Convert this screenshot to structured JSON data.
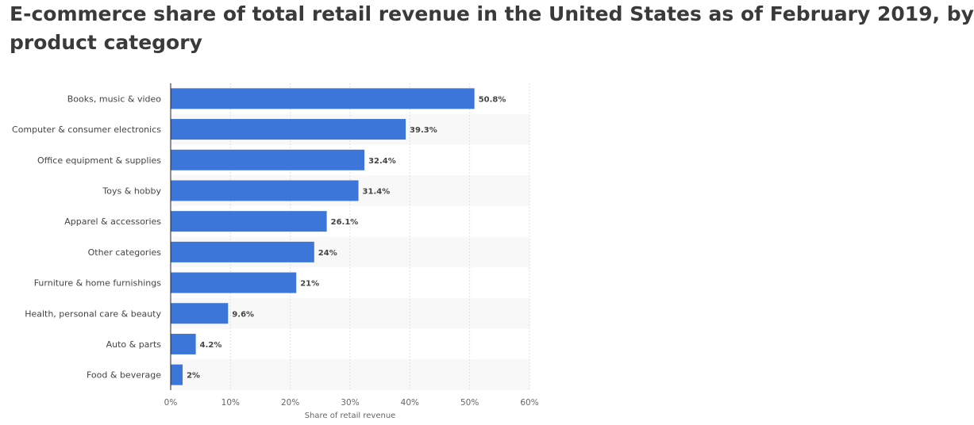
{
  "title_lines": [
    "E-commerce share of total retail revenue in the United States as of February 2019, by",
    "product category"
  ],
  "colors": {
    "bar": "#3b76d8",
    "title": "#3a3a3a",
    "label": "#444444",
    "axis_text": "#666666",
    "grid": "#e0e0e0",
    "band": "#f8f8f8"
  },
  "chart_data": {
    "type": "bar",
    "orientation": "horizontal",
    "title": "E-commerce share of total retail revenue in the United States as of February 2019, by product category",
    "categories": [
      "Books, music & video",
      "Computer & consumer electronics",
      "Office equipment & supplies",
      "Toys & hobby",
      "Apparel & accessories",
      "Other categories",
      "Furniture & home furnishings",
      "Health, personal care & beauty",
      "Auto & parts",
      "Food & beverage"
    ],
    "values": [
      50.8,
      39.3,
      32.4,
      31.4,
      26.1,
      24,
      21,
      9.6,
      4.2,
      2
    ],
    "data_labels": [
      "50.8%",
      "39.3%",
      "32.4%",
      "31.4%",
      "26.1%",
      "24%",
      "21%",
      "9.6%",
      "4.2%",
      "2%"
    ],
    "xlabel": "Share of retail revenue",
    "ylabel": "",
    "xlim": [
      0,
      60
    ],
    "x_ticks": [
      0,
      10,
      20,
      30,
      40,
      50,
      60
    ],
    "x_tick_labels": [
      "0%",
      "10%",
      "20%",
      "30%",
      "40%",
      "50%",
      "60%"
    ],
    "grid": true,
    "legend": "none"
  }
}
